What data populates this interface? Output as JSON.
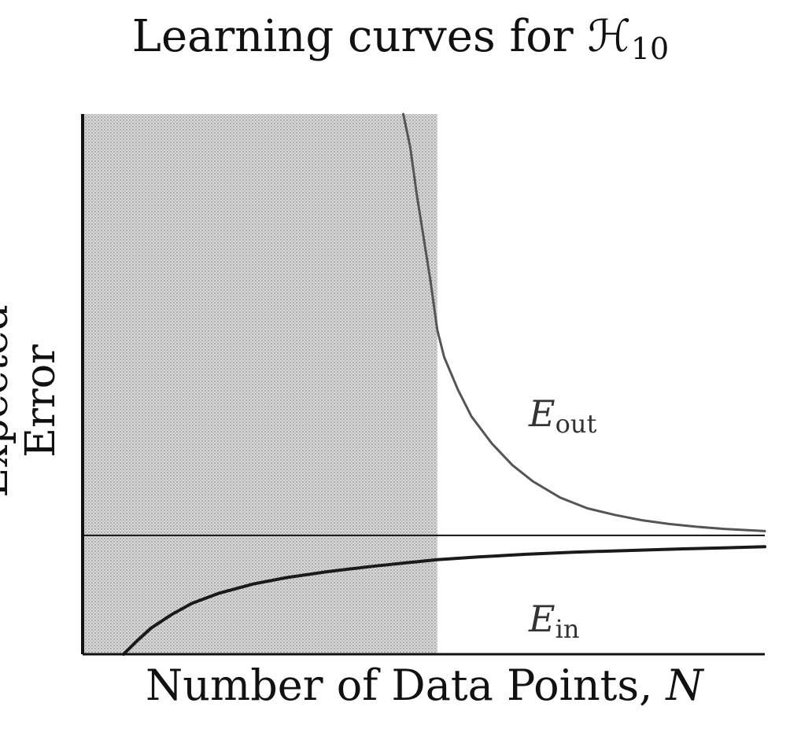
{
  "chart_data": {
    "type": "line",
    "title": "Learning curves for ℋ",
    "title_subscript": "10",
    "xlabel": "Number of Data Points, ",
    "xlabel_var": "N",
    "ylabel": "Expected Error",
    "xlim": [
      0,
      100
    ],
    "ylim": [
      0,
      100
    ],
    "grid": false,
    "legend": "none",
    "shaded_region": {
      "x_from": 0,
      "x_to": 52,
      "color": "#b8b8b8"
    },
    "reference_line": {
      "y": 22
    },
    "series": [
      {
        "name": "E",
        "name_subscript": "out",
        "x": [
          47,
          48,
          49,
          50,
          51,
          52,
          53,
          55,
          57,
          60,
          63,
          66,
          70,
          74,
          78,
          82,
          86,
          90,
          94,
          100
        ],
        "y": [
          100,
          94,
          85,
          77,
          69,
          60,
          55,
          49,
          44,
          39,
          35,
          32,
          29,
          27,
          25.8,
          24.8,
          24.1,
          23.6,
          23.2,
          22.8
        ]
      },
      {
        "name": "E",
        "name_subscript": "in",
        "x": [
          6,
          8,
          10,
          13,
          16,
          20,
          25,
          30,
          36,
          42,
          48,
          52,
          58,
          65,
          72,
          80,
          88,
          94,
          100
        ],
        "y": [
          0,
          2.5,
          4.8,
          7.3,
          9.4,
          11.3,
          13.0,
          14.2,
          15.3,
          16.2,
          17.0,
          17.5,
          18.0,
          18.5,
          18.9,
          19.2,
          19.5,
          19.7,
          19.9
        ]
      }
    ],
    "colors": {
      "axis": "#111111",
      "shade": "#b8b8b8",
      "eout": "#555555",
      "ein": "#1a1a1a"
    }
  }
}
